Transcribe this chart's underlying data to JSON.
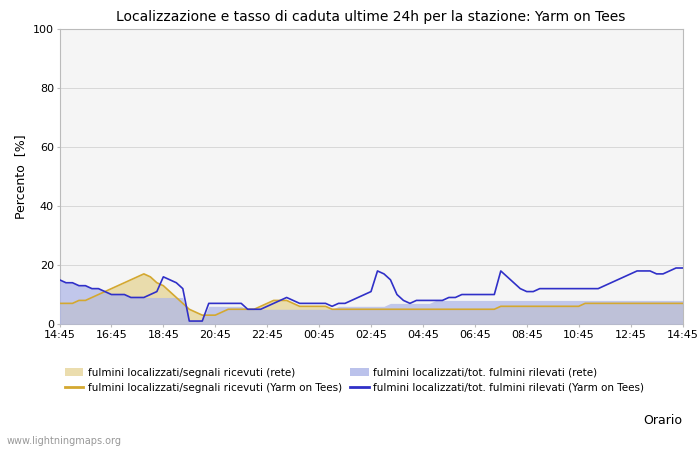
{
  "title": "Localizzazione e tasso di caduta ultime 24h per la stazione: Yarm on Tees",
  "xlabel": "Orario",
  "ylabel": "Percento  [%]",
  "ylim": [
    0,
    100
  ],
  "yticks": [
    0,
    20,
    40,
    60,
    80,
    100
  ],
  "x_labels": [
    "14:45",
    "16:45",
    "18:45",
    "20:45",
    "22:45",
    "00:45",
    "02:45",
    "04:45",
    "06:45",
    "08:45",
    "10:45",
    "12:45",
    "14:45"
  ],
  "background_color": "#ffffff",
  "plot_bg_color": "#f5f5f5",
  "grid_color": "#cccccc",
  "fill_rete_color": "#e8d8a0",
  "fill_rete_alpha": 0.85,
  "fill_station_color": "#b0b8e8",
  "fill_station_alpha": 0.75,
  "line_rete_color": "#d4a830",
  "line_station_color": "#3030c8",
  "line_width": 1.2,
  "watermark": "www.lightningmaps.org",
  "legend": [
    {
      "label": "fulmini localizzati/segnali ricevuti (rete)",
      "type": "fill",
      "color": "#e8d8a0"
    },
    {
      "label": "fulmini localizzati/segnali ricevuti (Yarm on Tees)",
      "type": "line",
      "color": "#d4a830"
    },
    {
      "label": "fulmini localizzati/tot. fulmini rilevati (rete)",
      "type": "fill",
      "color": "#b0b8e8"
    },
    {
      "label": "fulmini localizzati/tot. fulmini rilevati (Yarm on Tees)",
      "type": "line",
      "color": "#3030c8"
    }
  ],
  "n_points": 97,
  "fill_rete_data": [
    7,
    7,
    7,
    8,
    8,
    9,
    10,
    11,
    12,
    13,
    14,
    15,
    16,
    17,
    16,
    14,
    13,
    11,
    9,
    7,
    5,
    4,
    3,
    3,
    3,
    4,
    5,
    5,
    5,
    5,
    5,
    6,
    7,
    8,
    8,
    8,
    7,
    6,
    6,
    6,
    6,
    6,
    5,
    5,
    5,
    5,
    5,
    5,
    5,
    5,
    5,
    5,
    5,
    5,
    5,
    5,
    5,
    5,
    5,
    5,
    5,
    5,
    5,
    5,
    5,
    5,
    5,
    5,
    6,
    6,
    6,
    6,
    6,
    6,
    6,
    6,
    6,
    6,
    6,
    6,
    6,
    7,
    7,
    7,
    7,
    7,
    7,
    7,
    7,
    7,
    7,
    7,
    7,
    7,
    7,
    7,
    7
  ],
  "line_rete_data": [
    7,
    7,
    7,
    8,
    8,
    9,
    10,
    11,
    12,
    13,
    14,
    15,
    16,
    17,
    16,
    14,
    13,
    11,
    9,
    7,
    5,
    4,
    3,
    3,
    3,
    4,
    5,
    5,
    5,
    5,
    5,
    6,
    7,
    8,
    8,
    8,
    7,
    6,
    6,
    6,
    6,
    6,
    5,
    5,
    5,
    5,
    5,
    5,
    5,
    5,
    5,
    5,
    5,
    5,
    5,
    5,
    5,
    5,
    5,
    5,
    5,
    5,
    5,
    5,
    5,
    5,
    5,
    5,
    6,
    6,
    6,
    6,
    6,
    6,
    6,
    6,
    6,
    6,
    6,
    6,
    6,
    7,
    7,
    7,
    7,
    7,
    7,
    7,
    7,
    7,
    7,
    7,
    7,
    7,
    7,
    7,
    7
  ],
  "fill_station_data": [
    15,
    14,
    14,
    13,
    13,
    12,
    12,
    11,
    10,
    10,
    10,
    9,
    9,
    9,
    9,
    9,
    9,
    9,
    9,
    9,
    1,
    1,
    1,
    6,
    6,
    6,
    6,
    6,
    6,
    5,
    5,
    5,
    5,
    5,
    5,
    5,
    5,
    5,
    5,
    5,
    5,
    5,
    5,
    6,
    6,
    6,
    6,
    6,
    6,
    6,
    6,
    7,
    7,
    7,
    7,
    7,
    7,
    7,
    8,
    8,
    8,
    8,
    8,
    8,
    8,
    8,
    8,
    8,
    8,
    8,
    8,
    8,
    8,
    8,
    8,
    8,
    8,
    8,
    8,
    8,
    8,
    8,
    8,
    8,
    8,
    8,
    8,
    8,
    8,
    8,
    8,
    8,
    8,
    8,
    8,
    8,
    8
  ],
  "line_station_data": [
    15,
    14,
    14,
    13,
    13,
    12,
    12,
    11,
    10,
    10,
    10,
    9,
    9,
    9,
    10,
    11,
    16,
    15,
    14,
    12,
    1,
    1,
    1,
    7,
    7,
    7,
    7,
    7,
    7,
    5,
    5,
    5,
    6,
    7,
    8,
    9,
    8,
    7,
    7,
    7,
    7,
    7,
    6,
    7,
    7,
    8,
    9,
    10,
    11,
    18,
    17,
    15,
    10,
    8,
    7,
    8,
    8,
    8,
    8,
    8,
    9,
    9,
    10,
    10,
    10,
    10,
    10,
    10,
    18,
    16,
    14,
    12,
    11,
    11,
    12,
    12,
    12,
    12,
    12,
    12,
    12,
    12,
    12,
    12,
    13,
    14,
    15,
    16,
    17,
    18,
    18,
    18,
    17,
    17,
    18,
    19,
    19
  ]
}
